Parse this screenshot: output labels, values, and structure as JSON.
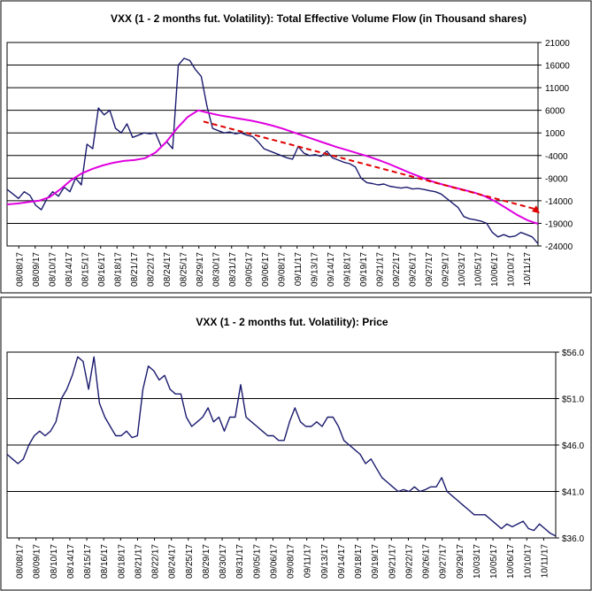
{
  "chart_data": [
    {
      "type": "line",
      "title": "VXX (1 - 2 months fut. Volatility): Total Effective Volume Flow (in Thousand shares)",
      "ylim": [
        -24000,
        21000
      ],
      "yticks": [
        21000,
        16000,
        11000,
        6000,
        1000,
        -4000,
        -9000,
        -14000,
        -19000,
        -24000
      ],
      "ytick_labels": [
        "21000",
        "16000",
        "11000",
        "6000",
        "1000",
        "-4000",
        "-9000",
        "-14000",
        "-19000",
        "-24000"
      ],
      "grid": "horizontal",
      "x_tick_labels": [
        "08/08/17",
        "08/09/17",
        "08/10/17",
        "08/14/17",
        "08/15/17",
        "08/16/17",
        "08/18/17",
        "08/21/17",
        "08/22/17",
        "08/24/17",
        "08/25/17",
        "08/29/17",
        "08/30/17",
        "08/31/17",
        "09/05/17",
        "09/06/17",
        "09/08/17",
        "09/11/17",
        "09/13/17",
        "09/14/17",
        "09/18/17",
        "09/19/17",
        "09/21/17",
        "09/22/17",
        "09/26/17",
        "09/27/17",
        "09/29/17",
        "10/03/17",
        "10/05/17",
        "10/06/17",
        "10/10/17",
        "10/11/17"
      ],
      "series": [
        {
          "style": "volume-flow",
          "color": "#1a1a6e",
          "values": [
            -11500,
            -12500,
            -13500,
            -12000,
            -12800,
            -15000,
            -16000,
            -13500,
            -12000,
            -13000,
            -11000,
            -12000,
            -9000,
            -10500,
            -1500,
            -2500,
            6500,
            5000,
            6000,
            2000,
            1000,
            3000,
            0,
            500,
            1000,
            800,
            1000,
            -2000,
            -1000,
            -2500,
            16000,
            17500,
            17000,
            15000,
            13500,
            7000,
            2000,
            1500,
            1000,
            1200,
            800,
            1000,
            500,
            200,
            -1000,
            -2500,
            -3000,
            -3500,
            -4000,
            -4500,
            -4800,
            -2000,
            -3500,
            -4000,
            -3800,
            -4200,
            -3000,
            -4500,
            -5000,
            -5500,
            -5800,
            -6500,
            -9000,
            -10000,
            -10200,
            -10500,
            -10300,
            -10800,
            -11000,
            -11200,
            -11000,
            -11400,
            -11300,
            -11500,
            -11800,
            -12000,
            -12500,
            -13500,
            -14500,
            -15500,
            -17500,
            -18000,
            -18200,
            -18500,
            -19000,
            -21000,
            -22000,
            -21500,
            -22000,
            -21800,
            -21000,
            -21500,
            -22000,
            -23500
          ]
        },
        {
          "style": "moving-average",
          "color": "#e000e0",
          "values": [
            -14800,
            -14600,
            -14300,
            -14000,
            -13200,
            -11500,
            -9500,
            -8000,
            -7000,
            -6200,
            -5600,
            -5200,
            -5000,
            -4600,
            -3300,
            -1000,
            2000,
            4500,
            6000,
            5400,
            4900,
            4500,
            4100,
            3700,
            3200,
            2600,
            1900,
            1100,
            300,
            -500,
            -1300,
            -2100,
            -2800,
            -3500,
            -4200,
            -5000,
            -5900,
            -6900,
            -7900,
            -8800,
            -9700,
            -10400,
            -11000,
            -11600,
            -12200,
            -13000,
            -14200,
            -15600,
            -17100,
            -18300,
            -19100
          ]
        },
        {
          "style": "trend-dashed",
          "color": "#e00000",
          "values": [
            3500,
            -16000
          ]
        }
      ]
    },
    {
      "type": "line",
      "title": "VXX (1 - 2 months fut. Volatility): Price",
      "ylim": [
        36.0,
        56.0
      ],
      "yticks": [
        56.0,
        51.0,
        46.0,
        41.0,
        36.0
      ],
      "ytick_labels": [
        "$56.0",
        "$51.0",
        "$46.0",
        "$41.0",
        "$36.0"
      ],
      "grid": "horizontal",
      "x_tick_labels": [
        "08/08/17",
        "08/09/17",
        "08/10/17",
        "08/14/17",
        "08/15/17",
        "08/16/17",
        "08/18/17",
        "08/21/17",
        "08/22/17",
        "08/24/17",
        "08/25/17",
        "08/29/17",
        "08/30/17",
        "08/31/17",
        "09/05/17",
        "09/06/17",
        "09/08/17",
        "09/11/17",
        "09/13/17",
        "09/14/17",
        "09/18/17",
        "09/19/17",
        "09/21/17",
        "09/22/17",
        "09/26/17",
        "09/27/17",
        "09/29/17",
        "10/03/17",
        "10/05/17",
        "10/06/17",
        "10/10/17",
        "10/11/17"
      ],
      "series": [
        {
          "style": "price",
          "color": "#1a1a6e",
          "values": [
            45.0,
            44.5,
            44.0,
            44.5,
            46.0,
            47.0,
            47.5,
            47.0,
            47.5,
            48.5,
            51.0,
            52.0,
            53.5,
            55.5,
            55.0,
            52.0,
            55.5,
            50.5,
            49.0,
            48.0,
            47.0,
            47.0,
            47.5,
            46.8,
            47.0,
            52.0,
            54.5,
            54.0,
            53.0,
            53.5,
            52.0,
            51.5,
            51.5,
            49.0,
            48.0,
            48.5,
            49.0,
            50.0,
            48.5,
            49.0,
            47.5,
            49.0,
            49.0,
            52.5,
            49.0,
            48.5,
            48.0,
            47.5,
            47.0,
            47.0,
            46.5,
            46.5,
            48.5,
            50.0,
            48.5,
            48.0,
            48.0,
            48.5,
            48.0,
            49.0,
            49.0,
            48.0,
            46.5,
            46.0,
            45.5,
            45.0,
            44.0,
            44.5,
            43.5,
            42.5,
            42.0,
            41.5,
            41.0,
            41.2,
            41.0,
            41.5,
            41.0,
            41.2,
            41.5,
            41.5,
            42.5,
            41.0,
            40.5,
            40.0,
            39.5,
            39.0,
            38.5,
            38.5,
            38.5,
            38.0,
            37.5,
            37.0,
            37.5,
            37.2,
            37.5,
            37.8,
            37.0,
            36.8,
            37.5,
            37.0,
            36.5,
            36.2
          ]
        }
      ]
    }
  ]
}
